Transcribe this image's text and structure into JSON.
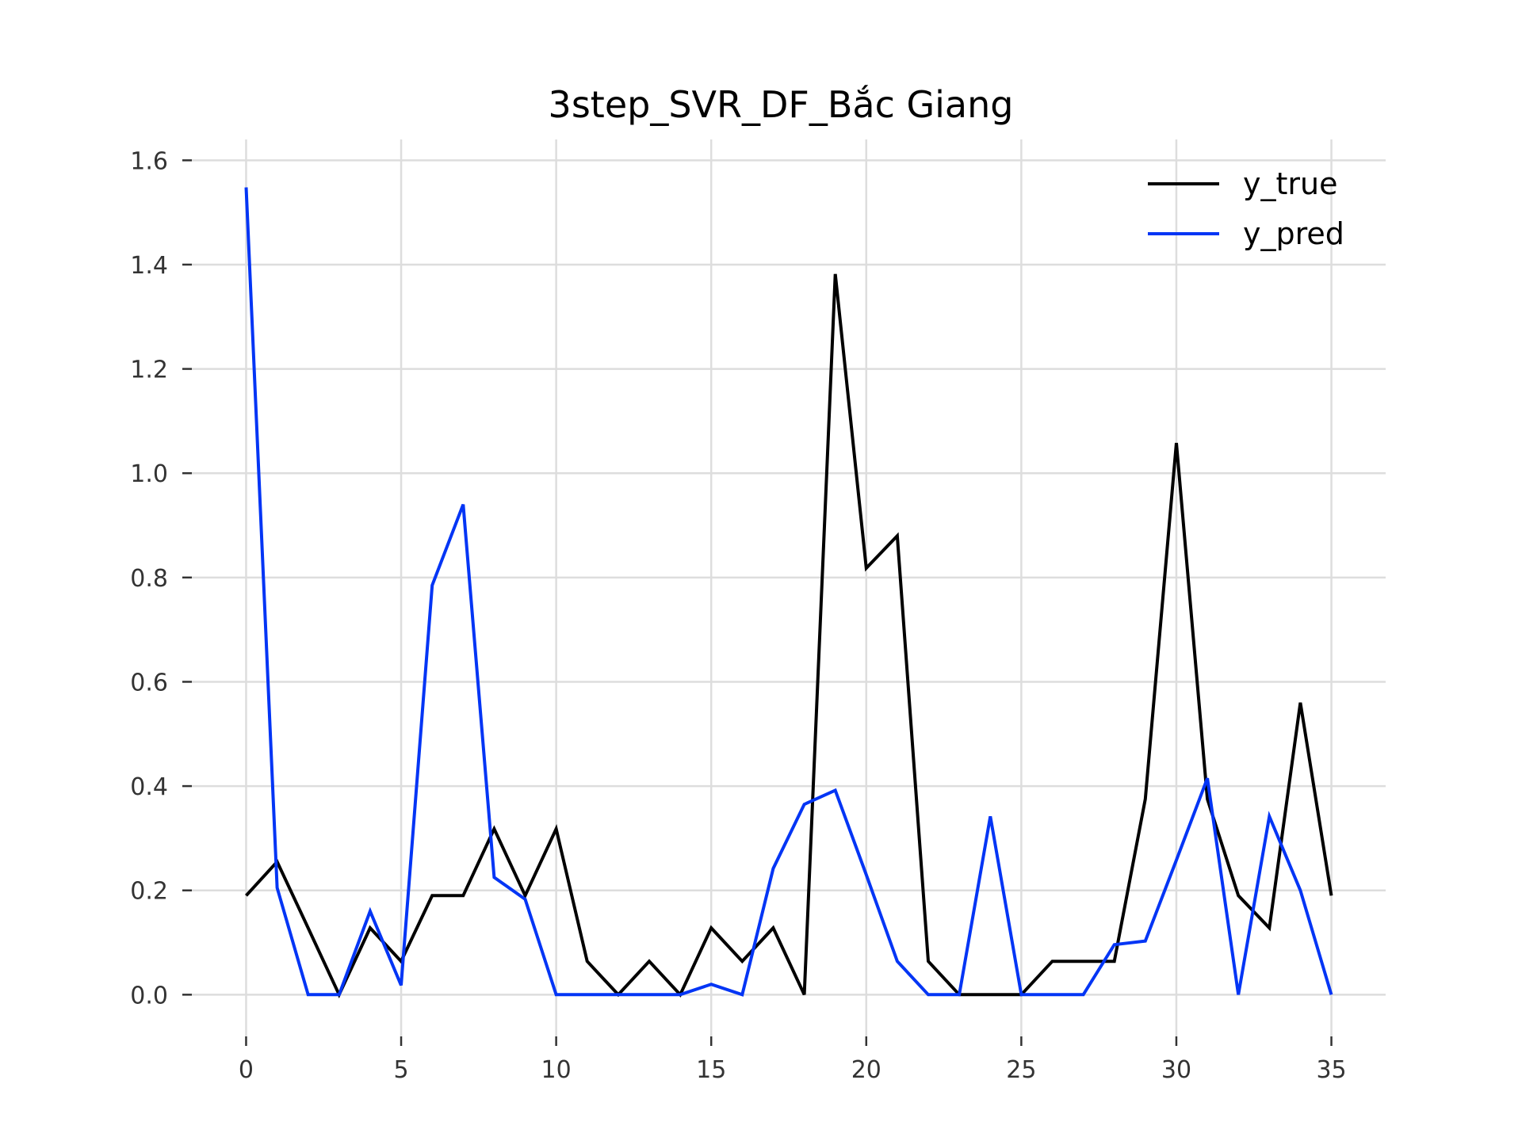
{
  "chart_data": {
    "type": "line",
    "title": "3step_SVR_DF_Bắc Giang",
    "xlabel": "",
    "ylabel": "",
    "xlim": [
      -1.75,
      36.75
    ],
    "ylim": [
      -0.08,
      1.64
    ],
    "xticks": [
      0,
      5,
      10,
      15,
      20,
      25,
      30,
      35
    ],
    "xtick_labels": [
      "0",
      "5",
      "10",
      "15",
      "20",
      "25",
      "30",
      "35"
    ],
    "yticks": [
      0.0,
      0.2,
      0.4,
      0.6,
      0.8,
      1.0,
      1.2,
      1.4,
      1.6
    ],
    "ytick_labels": [
      "0.0",
      "0.2",
      "0.4",
      "0.6",
      "0.8",
      "1.0",
      "1.2",
      "1.4",
      "1.6"
    ],
    "grid": true,
    "legend_position": "top-right",
    "x": [
      0,
      1,
      2,
      3,
      4,
      5,
      6,
      7,
      8,
      9,
      10,
      11,
      12,
      13,
      14,
      15,
      16,
      17,
      18,
      19,
      20,
      21,
      22,
      23,
      24,
      25,
      26,
      27,
      28,
      29,
      30,
      31,
      32,
      33,
      34,
      35
    ],
    "series": [
      {
        "name": "y_true",
        "color": "#000000",
        "values": [
          0.19,
          0.255,
          0.128,
          0.0,
          0.128,
          0.064,
          0.19,
          0.19,
          0.318,
          0.19,
          0.318,
          0.064,
          0.0,
          0.064,
          0.0,
          0.128,
          0.064,
          0.128,
          0.0,
          1.382,
          0.818,
          0.88,
          0.064,
          0.0,
          0.0,
          0.0,
          0.064,
          0.064,
          0.064,
          0.375,
          1.058,
          0.375,
          0.19,
          0.128,
          0.56,
          0.19
        ]
      },
      {
        "name": "y_pred",
        "color": "#0335f5",
        "values": [
          1.548,
          0.205,
          0.0,
          0.0,
          0.16,
          0.018,
          0.785,
          0.94,
          0.225,
          0.183,
          0.0,
          0.0,
          0.0,
          0.0,
          0.0,
          0.02,
          0.0,
          0.242,
          0.365,
          0.392,
          0.23,
          0.064,
          0.0,
          0.0,
          0.342,
          0.0,
          0.0,
          0.0,
          0.096,
          0.103,
          0.258,
          0.415,
          0.0,
          0.342,
          0.2,
          0.0
        ]
      }
    ]
  }
}
